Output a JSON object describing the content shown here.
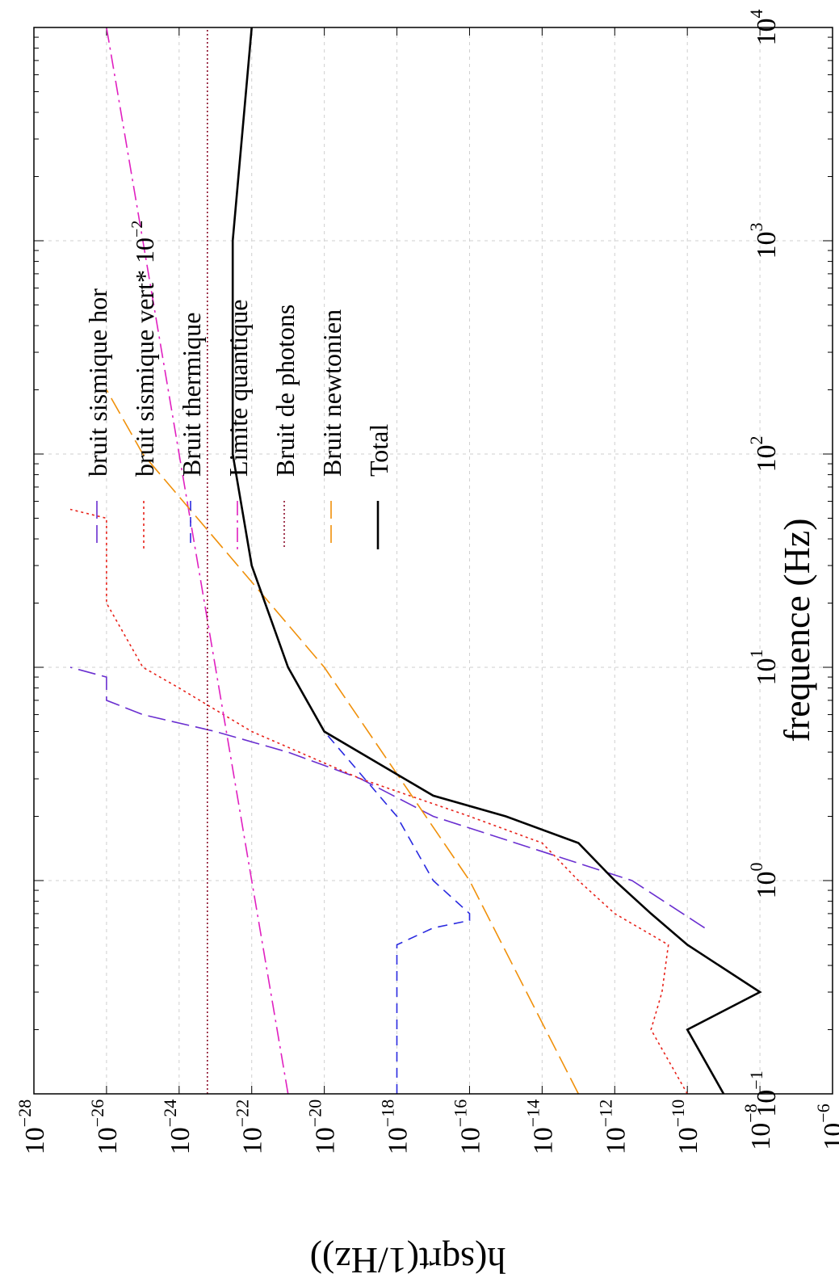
{
  "chart_data": {
    "type": "line",
    "orientation": "rotated-90-clockwise",
    "xlabel": "frequence (Hz)",
    "ylabel": "h(sqrt(1/Hz))",
    "xscale": "log",
    "yscale": "log",
    "xlim": [
      0.1,
      10000
    ],
    "ylim": [
      1e-28,
      1e-06
    ],
    "x_ticks": [
      {
        "base": "10",
        "exp": "−1"
      },
      {
        "base": "10",
        "exp": "0"
      },
      {
        "base": "10",
        "exp": "1"
      },
      {
        "base": "10",
        "exp": "2"
      },
      {
        "base": "10",
        "exp": "3"
      },
      {
        "base": "10",
        "exp": "4"
      }
    ],
    "y_ticks": [
      {
        "base": "10",
        "exp": "−28"
      },
      {
        "base": "10",
        "exp": "−26"
      },
      {
        "base": "10",
        "exp": "−24"
      },
      {
        "base": "10",
        "exp": "−22"
      },
      {
        "base": "10",
        "exp": "−20"
      },
      {
        "base": "10",
        "exp": "−18"
      },
      {
        "base": "10",
        "exp": "−16"
      },
      {
        "base": "10",
        "exp": "−14"
      },
      {
        "base": "10",
        "exp": "−12"
      },
      {
        "base": "10",
        "exp": "−10"
      },
      {
        "base": "10",
        "exp": "−8"
      },
      {
        "base": "10",
        "exp": "−6"
      }
    ],
    "grid": true,
    "legend_position": "top-right",
    "series": [
      {
        "name": "bruit sismique hor",
        "color": "#6a2fd0",
        "dash": "long-dash",
        "points": [
          [
            0.6,
            3e-10
          ],
          [
            1,
            3e-12
          ],
          [
            2,
            1e-17
          ],
          [
            3,
            1e-19
          ],
          [
            4,
            1e-21
          ],
          [
            5,
            1e-23
          ],
          [
            6,
            1e-25
          ],
          [
            7,
            1e-26
          ],
          [
            8,
            1e-26
          ],
          [
            9,
            1e-26
          ],
          [
            10,
            1e-27
          ]
        ]
      },
      {
        "name": "bruit sismique vert* 10^-2",
        "label_main": "bruit sismique vert* 10",
        "label_exp": "−2",
        "color": "#e8221a",
        "dash": "dotted",
        "points": [
          [
            0.1,
            1e-10
          ],
          [
            0.2,
            1e-11
          ],
          [
            0.3,
            2e-11
          ],
          [
            0.5,
            3e-11
          ],
          [
            0.7,
            1e-12
          ],
          [
            1,
            1e-13
          ],
          [
            1.5,
            1e-14
          ],
          [
            2,
            1e-16
          ],
          [
            3,
            1e-19
          ],
          [
            5,
            1e-22
          ],
          [
            8,
            1e-24
          ],
          [
            10,
            1e-25
          ],
          [
            20,
            1e-26
          ],
          [
            30,
            1e-26
          ],
          [
            40,
            1e-26
          ],
          [
            50,
            1e-26
          ],
          [
            55,
            1e-27
          ]
        ]
      },
      {
        "name": "Bruit thermique",
        "color": "#2a2ae0",
        "dash": "dashed",
        "points": [
          [
            0.1,
            1e-18
          ],
          [
            0.5,
            1e-18
          ],
          [
            0.6,
            1e-17
          ],
          [
            0.65,
            1e-16
          ],
          [
            0.7,
            1e-16
          ],
          [
            1,
            1e-17
          ],
          [
            2,
            1e-18
          ],
          [
            5,
            1e-20
          ],
          [
            10,
            1e-21
          ],
          [
            30,
            1e-22
          ],
          [
            100,
            3e-23
          ],
          [
            1000,
            3e-23
          ],
          [
            10000,
            1e-22
          ]
        ]
      },
      {
        "name": "Limite quantique",
        "color": "#e020c0",
        "dash": "dash-dot",
        "points": [
          [
            0.1,
            1e-21
          ],
          [
            1,
            1e-22
          ],
          [
            10,
            1e-23
          ],
          [
            100,
            1e-24
          ],
          [
            1000,
            1e-25
          ],
          [
            10000,
            1e-26
          ]
        ]
      },
      {
        "name": "Bruit de photons",
        "color": "#8a0a28",
        "dash": "fine-dotted",
        "points": [
          [
            0.1,
            6e-24
          ],
          [
            10000,
            6e-24
          ]
        ]
      },
      {
        "name": "Bruit newtonien",
        "color": "#f0900a",
        "dash": "long-dash",
        "points": [
          [
            0.1,
            1e-13
          ],
          [
            1,
            1e-16
          ],
          [
            10,
            1e-20
          ],
          [
            100,
            1e-25
          ],
          [
            200,
            1e-26
          ]
        ]
      },
      {
        "name": "Total",
        "color": "#000000",
        "dash": "solid",
        "points": [
          [
            0.1,
            1e-09
          ],
          [
            0.2,
            1e-10
          ],
          [
            0.3,
            1e-08
          ],
          [
            0.5,
            1e-10
          ],
          [
            0.7,
            1e-11
          ],
          [
            1,
            1e-12
          ],
          [
            1.5,
            1e-13
          ],
          [
            2,
            1e-15
          ],
          [
            2.5,
            1e-17
          ],
          [
            5,
            1e-20
          ],
          [
            10,
            1e-21
          ],
          [
            30,
            1e-22
          ],
          [
            100,
            3e-23
          ],
          [
            1000,
            3e-23
          ],
          [
            10000,
            1e-22
          ]
        ]
      }
    ]
  }
}
